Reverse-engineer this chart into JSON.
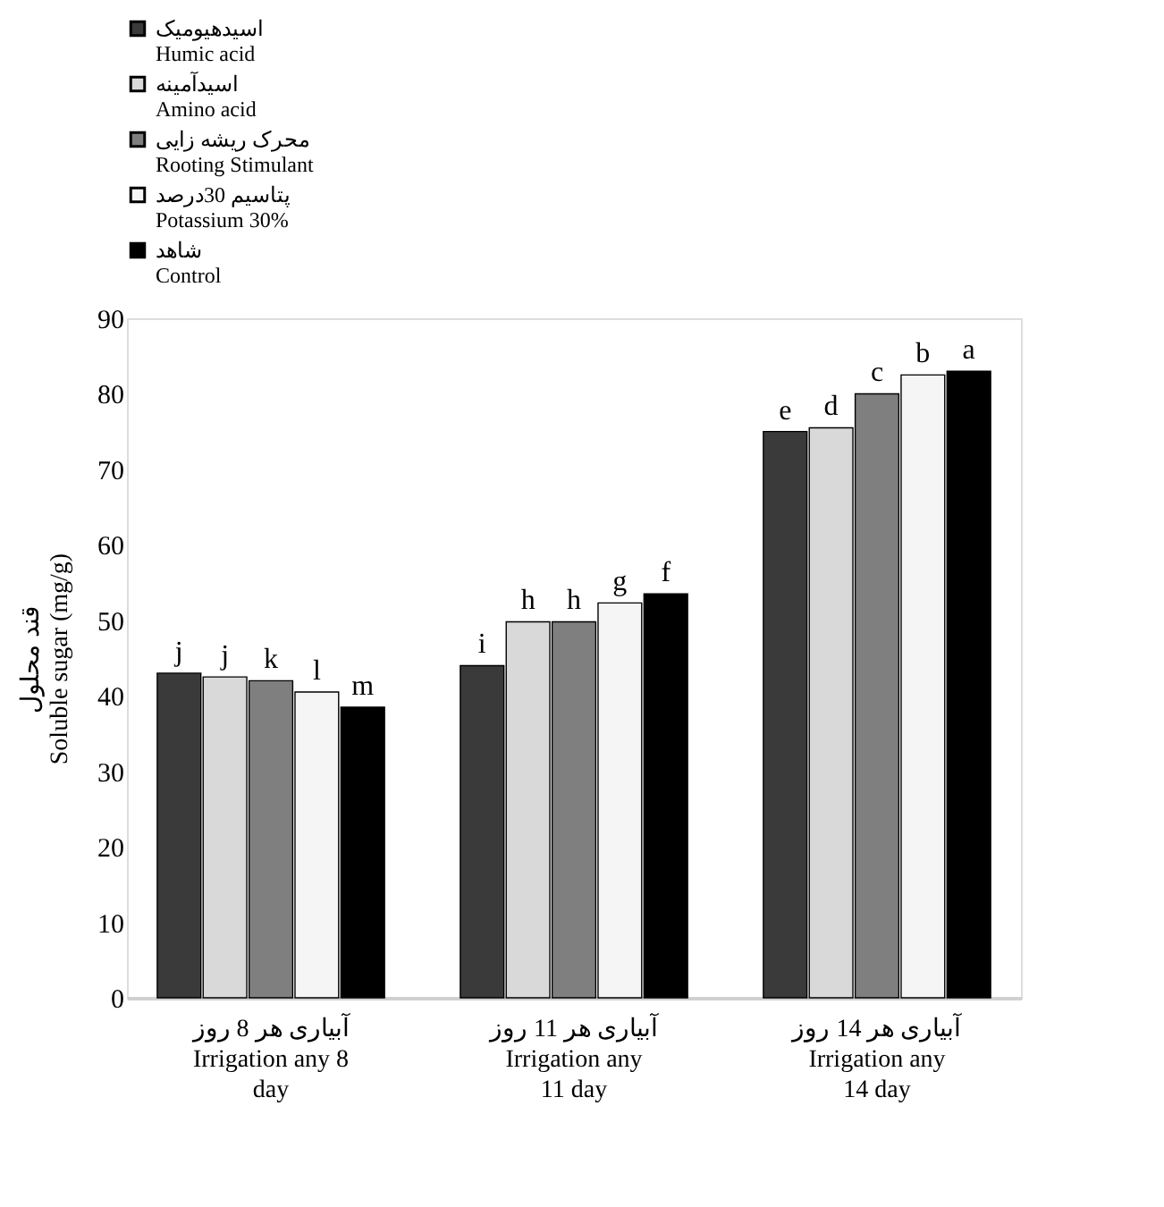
{
  "chart_data": {
    "type": "bar",
    "ylabel": "قند محلول\nSoluble sugar (mg/g)",
    "categories": [
      "آبیاری هر 8 روز\nIrrigation any 8\nday",
      "آبیاری هر 11 روز\nIrrigation any\n11 day",
      "آبیاری هر 14 روز\nIrrigation any\n14 day"
    ],
    "series": [
      {
        "name": "اسیدهیومیک\nHumic acid",
        "color": "#3a3a3a",
        "values": [
          43,
          44,
          75
        ],
        "value_labels": [
          "j",
          "i",
          "e"
        ]
      },
      {
        "name": "اسیدآمینه\nAmino acid",
        "color": "#d9d9d9",
        "values": [
          42.5,
          49.8,
          75.5
        ],
        "value_labels": [
          "j",
          "h",
          "d"
        ]
      },
      {
        "name": "محرک ریشه زایی\nRooting Stimulant",
        "color": "#7f7f7f",
        "values": [
          42,
          49.8,
          80
        ],
        "value_labels": [
          "k",
          "h",
          "c"
        ]
      },
      {
        "name": "پتاسیم 30درصد\nPotassium 30%",
        "color": "#f5f5f5",
        "values": [
          40.5,
          52.3,
          82.5
        ],
        "value_labels": [
          "l",
          "g",
          "b"
        ]
      },
      {
        "name": "شاهد\nControl",
        "color": "#000000",
        "values": [
          38.5,
          53.5,
          83
        ],
        "value_labels": [
          "m",
          "f",
          "a"
        ]
      }
    ],
    "ylim": [
      0,
      90
    ],
    "yticks": [
      0,
      10,
      20,
      30,
      40,
      50,
      60,
      70,
      80,
      90
    ],
    "grid": false,
    "legend": "top"
  }
}
